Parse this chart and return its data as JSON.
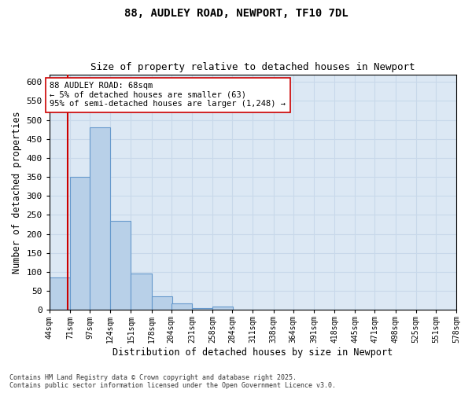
{
  "title1": "88, AUDLEY ROAD, NEWPORT, TF10 7DL",
  "title2": "Size of property relative to detached houses in Newport",
  "xlabel": "Distribution of detached houses by size in Newport",
  "ylabel": "Number of detached properties",
  "bins": [
    44,
    71,
    97,
    124,
    151,
    178,
    204,
    231,
    258,
    284,
    311,
    338,
    364,
    391,
    418,
    445,
    471,
    498,
    525,
    551,
    578
  ],
  "bar_heights": [
    85,
    350,
    480,
    235,
    95,
    35,
    17,
    5,
    8,
    0,
    0,
    0,
    0,
    0,
    0,
    0,
    0,
    0,
    0,
    0
  ],
  "bar_color": "#b8d0e8",
  "bar_edge_color": "#6699cc",
  "grid_color": "#c8d8ea",
  "bg_color": "#dce8f4",
  "property_line_x": 68,
  "property_line_color": "#cc0000",
  "annotation_text": "88 AUDLEY ROAD: 68sqm\n← 5% of detached houses are smaller (63)\n95% of semi-detached houses are larger (1,248) →",
  "annotation_box_color": "#ffffff",
  "annotation_border_color": "#cc0000",
  "footer_text": "Contains HM Land Registry data © Crown copyright and database right 2025.\nContains public sector information licensed under the Open Government Licence v3.0.",
  "ylim": [
    0,
    620
  ],
  "yticks": [
    0,
    50,
    100,
    150,
    200,
    250,
    300,
    350,
    400,
    450,
    500,
    550,
    600
  ]
}
